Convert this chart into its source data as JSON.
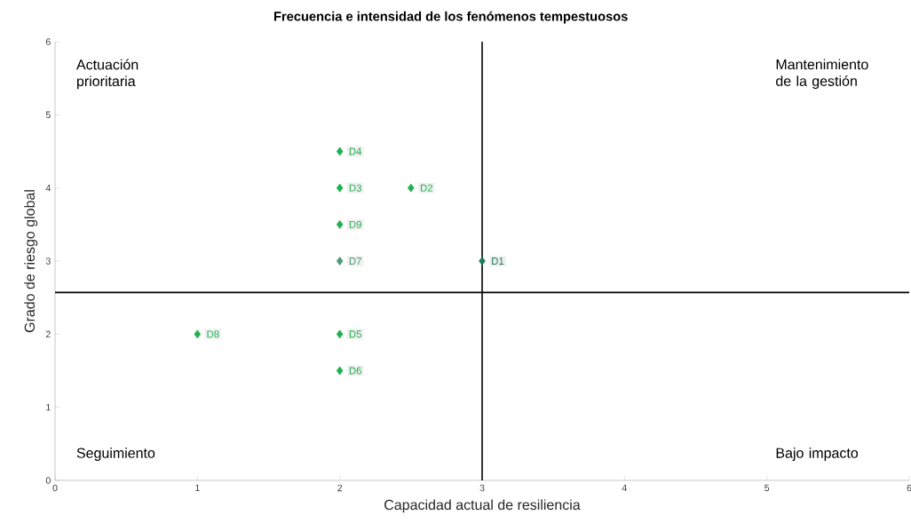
{
  "chart_data": {
    "type": "scatter",
    "title": "Frecuencia e intensidad de los fenómenos tempestuosos",
    "xlabel": "Capacidad actual de resiliencia",
    "ylabel": "Grado de riesgo global",
    "xlim": [
      0,
      6
    ],
    "ylim": [
      0,
      6
    ],
    "xticks": [
      0,
      1,
      2,
      3,
      4,
      5,
      6
    ],
    "yticks": [
      0,
      1,
      2,
      3,
      4,
      5,
      6
    ],
    "marker": "diamond",
    "x": [
      3,
      2.5,
      2,
      2,
      2,
      2,
      2,
      1,
      2
    ],
    "series": [
      {
        "values": [
          3,
          4,
          4,
          4.5,
          2,
          1.5,
          3,
          2,
          3.5
        ],
        "colors": [
          "#1f7a5c",
          "#1fb04f",
          "#1fb04f",
          "#1fb04f",
          "#1fb04f",
          "#1fb04f",
          "#4f9a78",
          "#1fb04f",
          "#1fb04f"
        ],
        "value_labels": [
          "D1",
          "D2",
          "D3",
          "D4",
          "D5",
          "D6",
          "D7",
          "D8",
          "D9"
        ]
      }
    ],
    "ref_lines": [
      {
        "axis": "x",
        "value": 3,
        "color": "#000000"
      },
      {
        "axis": "y",
        "value": 2.57,
        "color": "#000000"
      }
    ],
    "annotations": [
      "Actuación prioritaria",
      "Mantenimiento de la gestión",
      "Seguimiento",
      "Bajo impacto"
    ]
  }
}
